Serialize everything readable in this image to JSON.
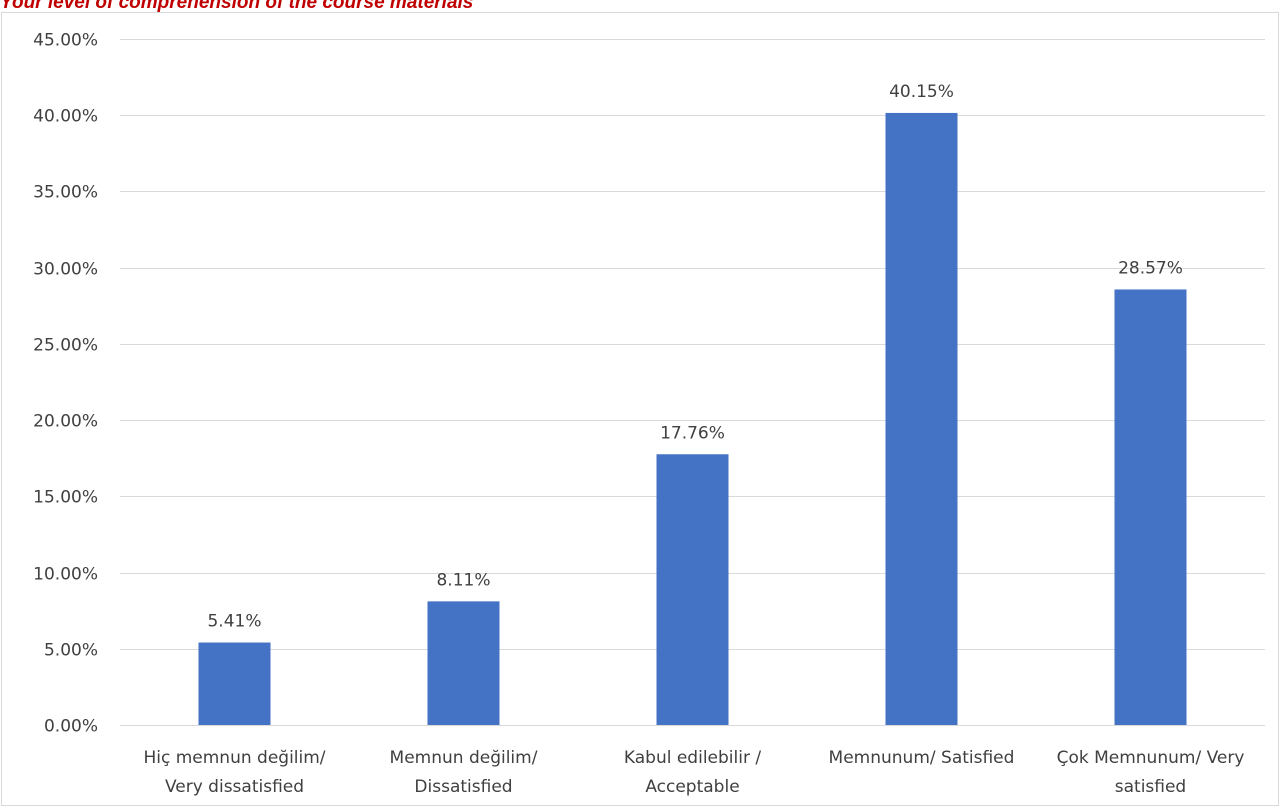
{
  "chart_data": {
    "type": "bar",
    "title": "Your level of comprehension of the course materials",
    "categories": [
      [
        "Hiç memnun değilim/",
        "Very dissatisfied"
      ],
      [
        "Memnun değilim/",
        "Dissatisfied"
      ],
      [
        "Kabul edilebilir /",
        "Acceptable"
      ],
      [
        "Memnunum/ Satisfied"
      ],
      [
        "Çok Memnunum/ Very",
        "satisfied"
      ]
    ],
    "values": [
      5.41,
      8.11,
      17.76,
      40.15,
      28.57
    ],
    "value_labels": [
      "5.41%",
      "8.11%",
      "17.76%",
      "40.15%",
      "28.57%"
    ],
    "y_ticks": [
      0,
      5,
      10,
      15,
      20,
      25,
      30,
      35,
      40,
      45
    ],
    "y_tick_labels": [
      "0.00%",
      "5.00%",
      "10.00%",
      "15.00%",
      "20.00%",
      "25.00%",
      "30.00%",
      "35.00%",
      "40.00%",
      "45.00%"
    ],
    "ylim": [
      0,
      45
    ],
    "xlabel": "",
    "ylabel": "",
    "grid": true,
    "legend": "none",
    "colors": {
      "bar": "#4472c4",
      "grid": "#d9d9d9",
      "text": "#404040",
      "title": "#c00000",
      "border": "#d9d9d9"
    }
  }
}
